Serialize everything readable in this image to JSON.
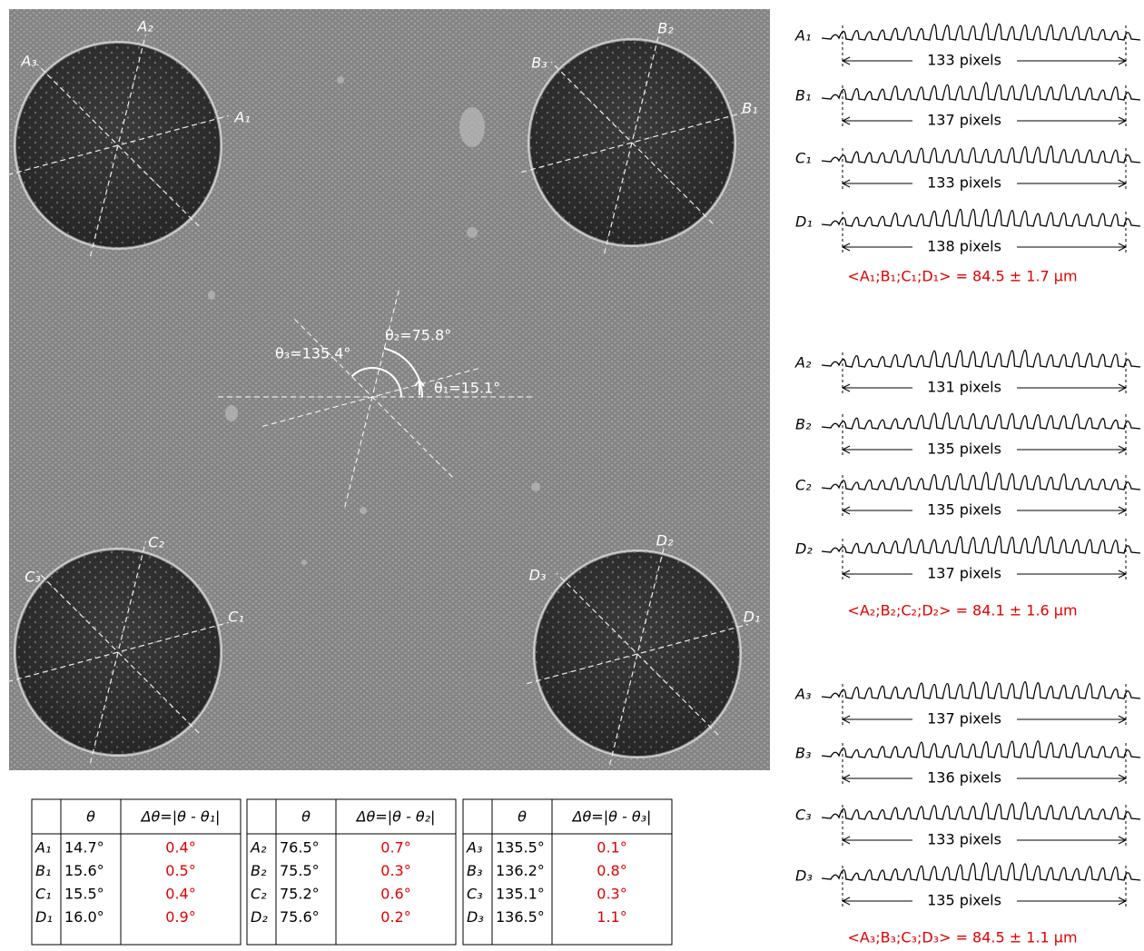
{
  "image": {
    "labels": [
      "A₁",
      "A₂",
      "A₃",
      "B₁",
      "B₂",
      "B₃",
      "C₁",
      "C₂",
      "C₃",
      "D₁",
      "D₂",
      "D₃"
    ],
    "angles": [
      "θ₁=15.1°",
      "θ₂=75.8°",
      "θ₃=135.4°"
    ]
  },
  "profiles": [
    {
      "rows": [
        {
          "label": "A₁",
          "width": "133 pixels"
        },
        {
          "label": "B₁",
          "width": "137 pixels"
        },
        {
          "label": "C₁",
          "width": "133 pixels"
        },
        {
          "label": "D₁",
          "width": "138 pixels"
        }
      ],
      "mean": "<A₁;B₁;C₁;D₁> = 84.5 ± 1.7 μm"
    },
    {
      "rows": [
        {
          "label": "A₂",
          "width": "131 pixels"
        },
        {
          "label": "B₂",
          "width": "135 pixels"
        },
        {
          "label": "C₂",
          "width": "135 pixels"
        },
        {
          "label": "D₂",
          "width": "137 pixels"
        }
      ],
      "mean": "<A₂;B₂;C₂;D₂> = 84.1 ± 1.6 μm"
    },
    {
      "rows": [
        {
          "label": "A₃",
          "width": "137 pixels"
        },
        {
          "label": "B₃",
          "width": "136 pixels"
        },
        {
          "label": "C₃",
          "width": "133 pixels"
        },
        {
          "label": "D₃",
          "width": "135 pixels"
        }
      ],
      "mean": "<A₃;B₃;C₃;D₃> = 84.5 ± 1.1 μm"
    }
  ],
  "tables": [
    {
      "header": [
        "θ",
        "Δθ=|θ - θ₁|"
      ],
      "rows": [
        [
          "A₁",
          "14.7°",
          "0.4°"
        ],
        [
          "B₁",
          "15.6°",
          "0.5°"
        ],
        [
          "C₁",
          "15.5°",
          "0.4°"
        ],
        [
          "D₁",
          "16.0°",
          "0.9°"
        ]
      ]
    },
    {
      "header": [
        "θ",
        "Δθ=|θ - θ₂|"
      ],
      "rows": [
        [
          "A₂",
          "76.5°",
          "0.7°"
        ],
        [
          "B₂",
          "75.5°",
          "0.3°"
        ],
        [
          "C₂",
          "75.2°",
          "0.6°"
        ],
        [
          "D₂",
          "75.6°",
          "0.2°"
        ]
      ]
    },
    {
      "header": [
        "θ",
        "Δθ=|θ - θ₃|"
      ],
      "rows": [
        [
          "A₃",
          "135.5°",
          "0.1°"
        ],
        [
          "B₃",
          "136.2°",
          "0.8°"
        ],
        [
          "C₃",
          "135.1°",
          "0.3°"
        ],
        [
          "D₃",
          "136.5°",
          "1.1°"
        ]
      ]
    }
  ]
}
